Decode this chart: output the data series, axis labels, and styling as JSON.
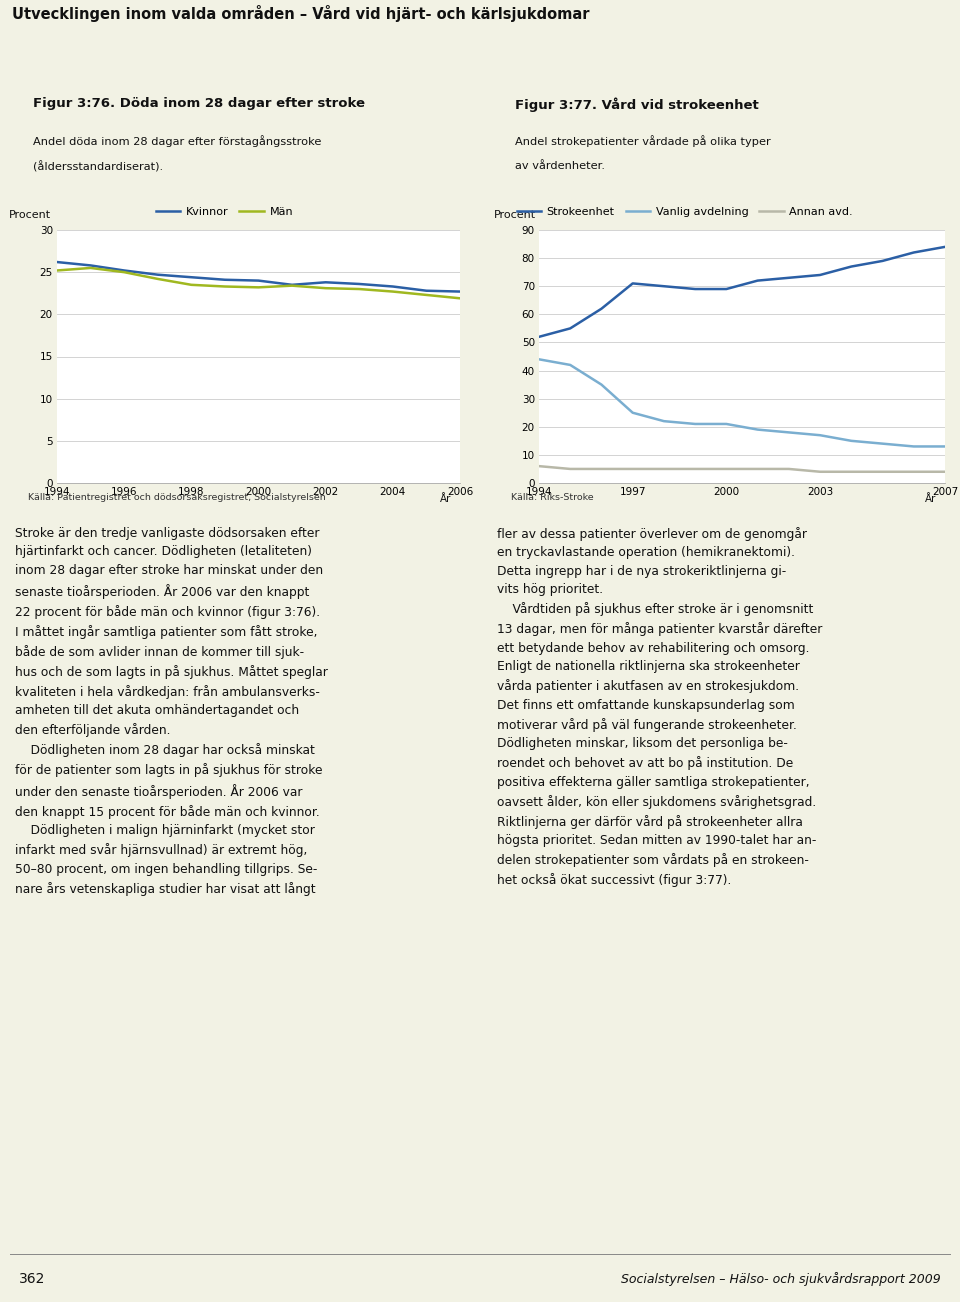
{
  "page_title": "Utvecklingen inom valda områden – Vård vid hjärt- och kärlsjukdomar",
  "bg_color": "#f2f2e4",
  "chart_bg": "#ffffff",
  "panel_bg": "#eaeada",
  "fig376": {
    "title_bold": "Figur 3:76. Döda inom 28 dagar efter stroke",
    "subtitle1": "Andel döda inom 28 dagar efter förstagångsstroke",
    "subtitle2": "(åldersstandardiserat).",
    "ylabel": "Procent",
    "xlabel": "År",
    "source": "Källa: Patientregistret och dödsorsaksregistret, Socialstyrelsen",
    "ylim": [
      0,
      30
    ],
    "yticks": [
      0,
      5,
      10,
      15,
      20,
      25,
      30
    ],
    "years_kvinnor": [
      1994,
      1995,
      1996,
      1997,
      1998,
      1999,
      2000,
      2001,
      2002,
      2003,
      2004,
      2005,
      2006
    ],
    "values_kvinnor": [
      26.2,
      25.8,
      25.2,
      24.7,
      24.4,
      24.1,
      24.0,
      23.5,
      23.8,
      23.6,
      23.3,
      22.8,
      22.7
    ],
    "years_man": [
      1994,
      1995,
      1996,
      1997,
      1998,
      1999,
      2000,
      2001,
      2002,
      2003,
      2004,
      2005,
      2006
    ],
    "values_man": [
      25.2,
      25.5,
      25.0,
      24.2,
      23.5,
      23.3,
      23.2,
      23.4,
      23.1,
      23.0,
      22.7,
      22.3,
      21.9
    ],
    "color_kvinnor": "#2b5fa5",
    "color_man": "#a0b820",
    "legend_labels": [
      "Kvinnor",
      "Män"
    ],
    "xticks": [
      1994,
      1996,
      1998,
      2000,
      2002,
      2004,
      2006
    ],
    "xlim": [
      1994,
      2006
    ]
  },
  "fig377": {
    "title_bold": "Figur 3:77. Vård vid strokeenhet",
    "subtitle1": "Andel strokepatienter vårdade på olika typer",
    "subtitle2": "av vårdenheter.",
    "ylabel": "Procent",
    "xlabel": "År",
    "source": "Källa: Riks-Stroke",
    "ylim": [
      0,
      90
    ],
    "yticks": [
      0,
      10,
      20,
      30,
      40,
      50,
      60,
      70,
      80,
      90
    ],
    "years_stroke": [
      1994,
      1995,
      1996,
      1997,
      1998,
      1999,
      2000,
      2001,
      2002,
      2003,
      2004,
      2005,
      2006,
      2007
    ],
    "values_stroke": [
      52,
      55,
      62,
      71,
      70,
      69,
      69,
      72,
      73,
      74,
      77,
      79,
      82,
      84
    ],
    "years_vanlig": [
      1994,
      1995,
      1996,
      1997,
      1998,
      1999,
      2000,
      2001,
      2002,
      2003,
      2004,
      2005,
      2006,
      2007
    ],
    "values_vanlig": [
      44,
      42,
      35,
      25,
      22,
      21,
      21,
      19,
      18,
      17,
      15,
      14,
      13,
      13
    ],
    "years_annan": [
      1994,
      1995,
      1996,
      1997,
      1998,
      1999,
      2000,
      2001,
      2002,
      2003,
      2004,
      2005,
      2006,
      2007
    ],
    "values_annan": [
      6,
      5,
      5,
      5,
      5,
      5,
      5,
      5,
      5,
      4,
      4,
      4,
      4,
      4
    ],
    "color_stroke": "#2b5fa5",
    "color_vanlig": "#7aaed0",
    "color_annan": "#b8b8a8",
    "legend_labels": [
      "Strokeenhet",
      "Vanlig avdelning",
      "Annan avd."
    ],
    "xticks": [
      1994,
      1997,
      2000,
      2003,
      2007
    ],
    "xlim": [
      1994,
      2007
    ]
  },
  "body_text_left": [
    "Stroke är den tredje vanligaste dödsorsaken efter",
    "hjärtinfarkt och cancer. Dödligheten (letaliteten)",
    "inom 28 dagar efter stroke har minskat under den",
    "senaste tioårsperioden. År 2006 var den knappt",
    "22 procent för både män och kvinnor (figur 3:76).",
    "I måttet ingår samtliga patienter som fått stroke,",
    "både de som avlider innan de kommer till sjuk-",
    "hus och de som lagts in på sjukhus. Måttet speglar",
    "kvaliteten i hela vårdkedjan: från ambulansverks-",
    "amheten till det akuta omhändertagandet och",
    "den efterföljande vården.",
    "    Dödligheten inom 28 dagar har också minskat",
    "för de patienter som lagts in på sjukhus för stroke",
    "under den senaste tioårsperioden. År 2006 var",
    "den knappt 15 procent för både män och kvinnor.",
    "    Dödligheten i malign hjärninfarkt (mycket stor",
    "infarkt med svår hjärnsvullnad) är extremt hög,",
    "50–80 procent, om ingen behandling tillgrips. Se-",
    "nare års vetenskapliga studier har visat att långt"
  ],
  "body_text_right": [
    "fler av dessa patienter överlever om de genomgår",
    "en tryckavlastande operation (hemikranektomi).",
    "Detta ingrepp har i de nya strokeriktlinjerna gi-",
    "vits hög prioritet.",
    "    Vårdtiden på sjukhus efter stroke är i genomsnitt",
    "13 dagar, men för många patienter kvarstår därefter",
    "ett betydande behov av rehabilitering och omsorg.",
    "Enligt de nationella riktlinjerna ska strokeenheter",
    "vårda patienter i akutfasen av en strokesjukdom.",
    "Det finns ett omfattande kunskapsunderlag som",
    "motiverar vård på väl fungerande strokeenheter.",
    "Dödligheten minskar, liksom det personliga be-",
    "roendet och behovet av att bo på institution. De",
    "positiva effekterna gäller samtliga strokepatienter,",
    "oavsett ålder, kön eller sjukdomens svårighetsgrad.",
    "Riktlinjerna ger därför vård på strokeenheter allra",
    "högsta prioritet. Sedan mitten av 1990-talet har an-",
    "delen strokepatienter som vårdats på en strokeen-",
    "het också ökat successivt (figur 3:77)."
  ],
  "footer_text": "362",
  "footer_right": "Socialstyrelsen – Hälso- och sjukvårdsrapport 2009"
}
